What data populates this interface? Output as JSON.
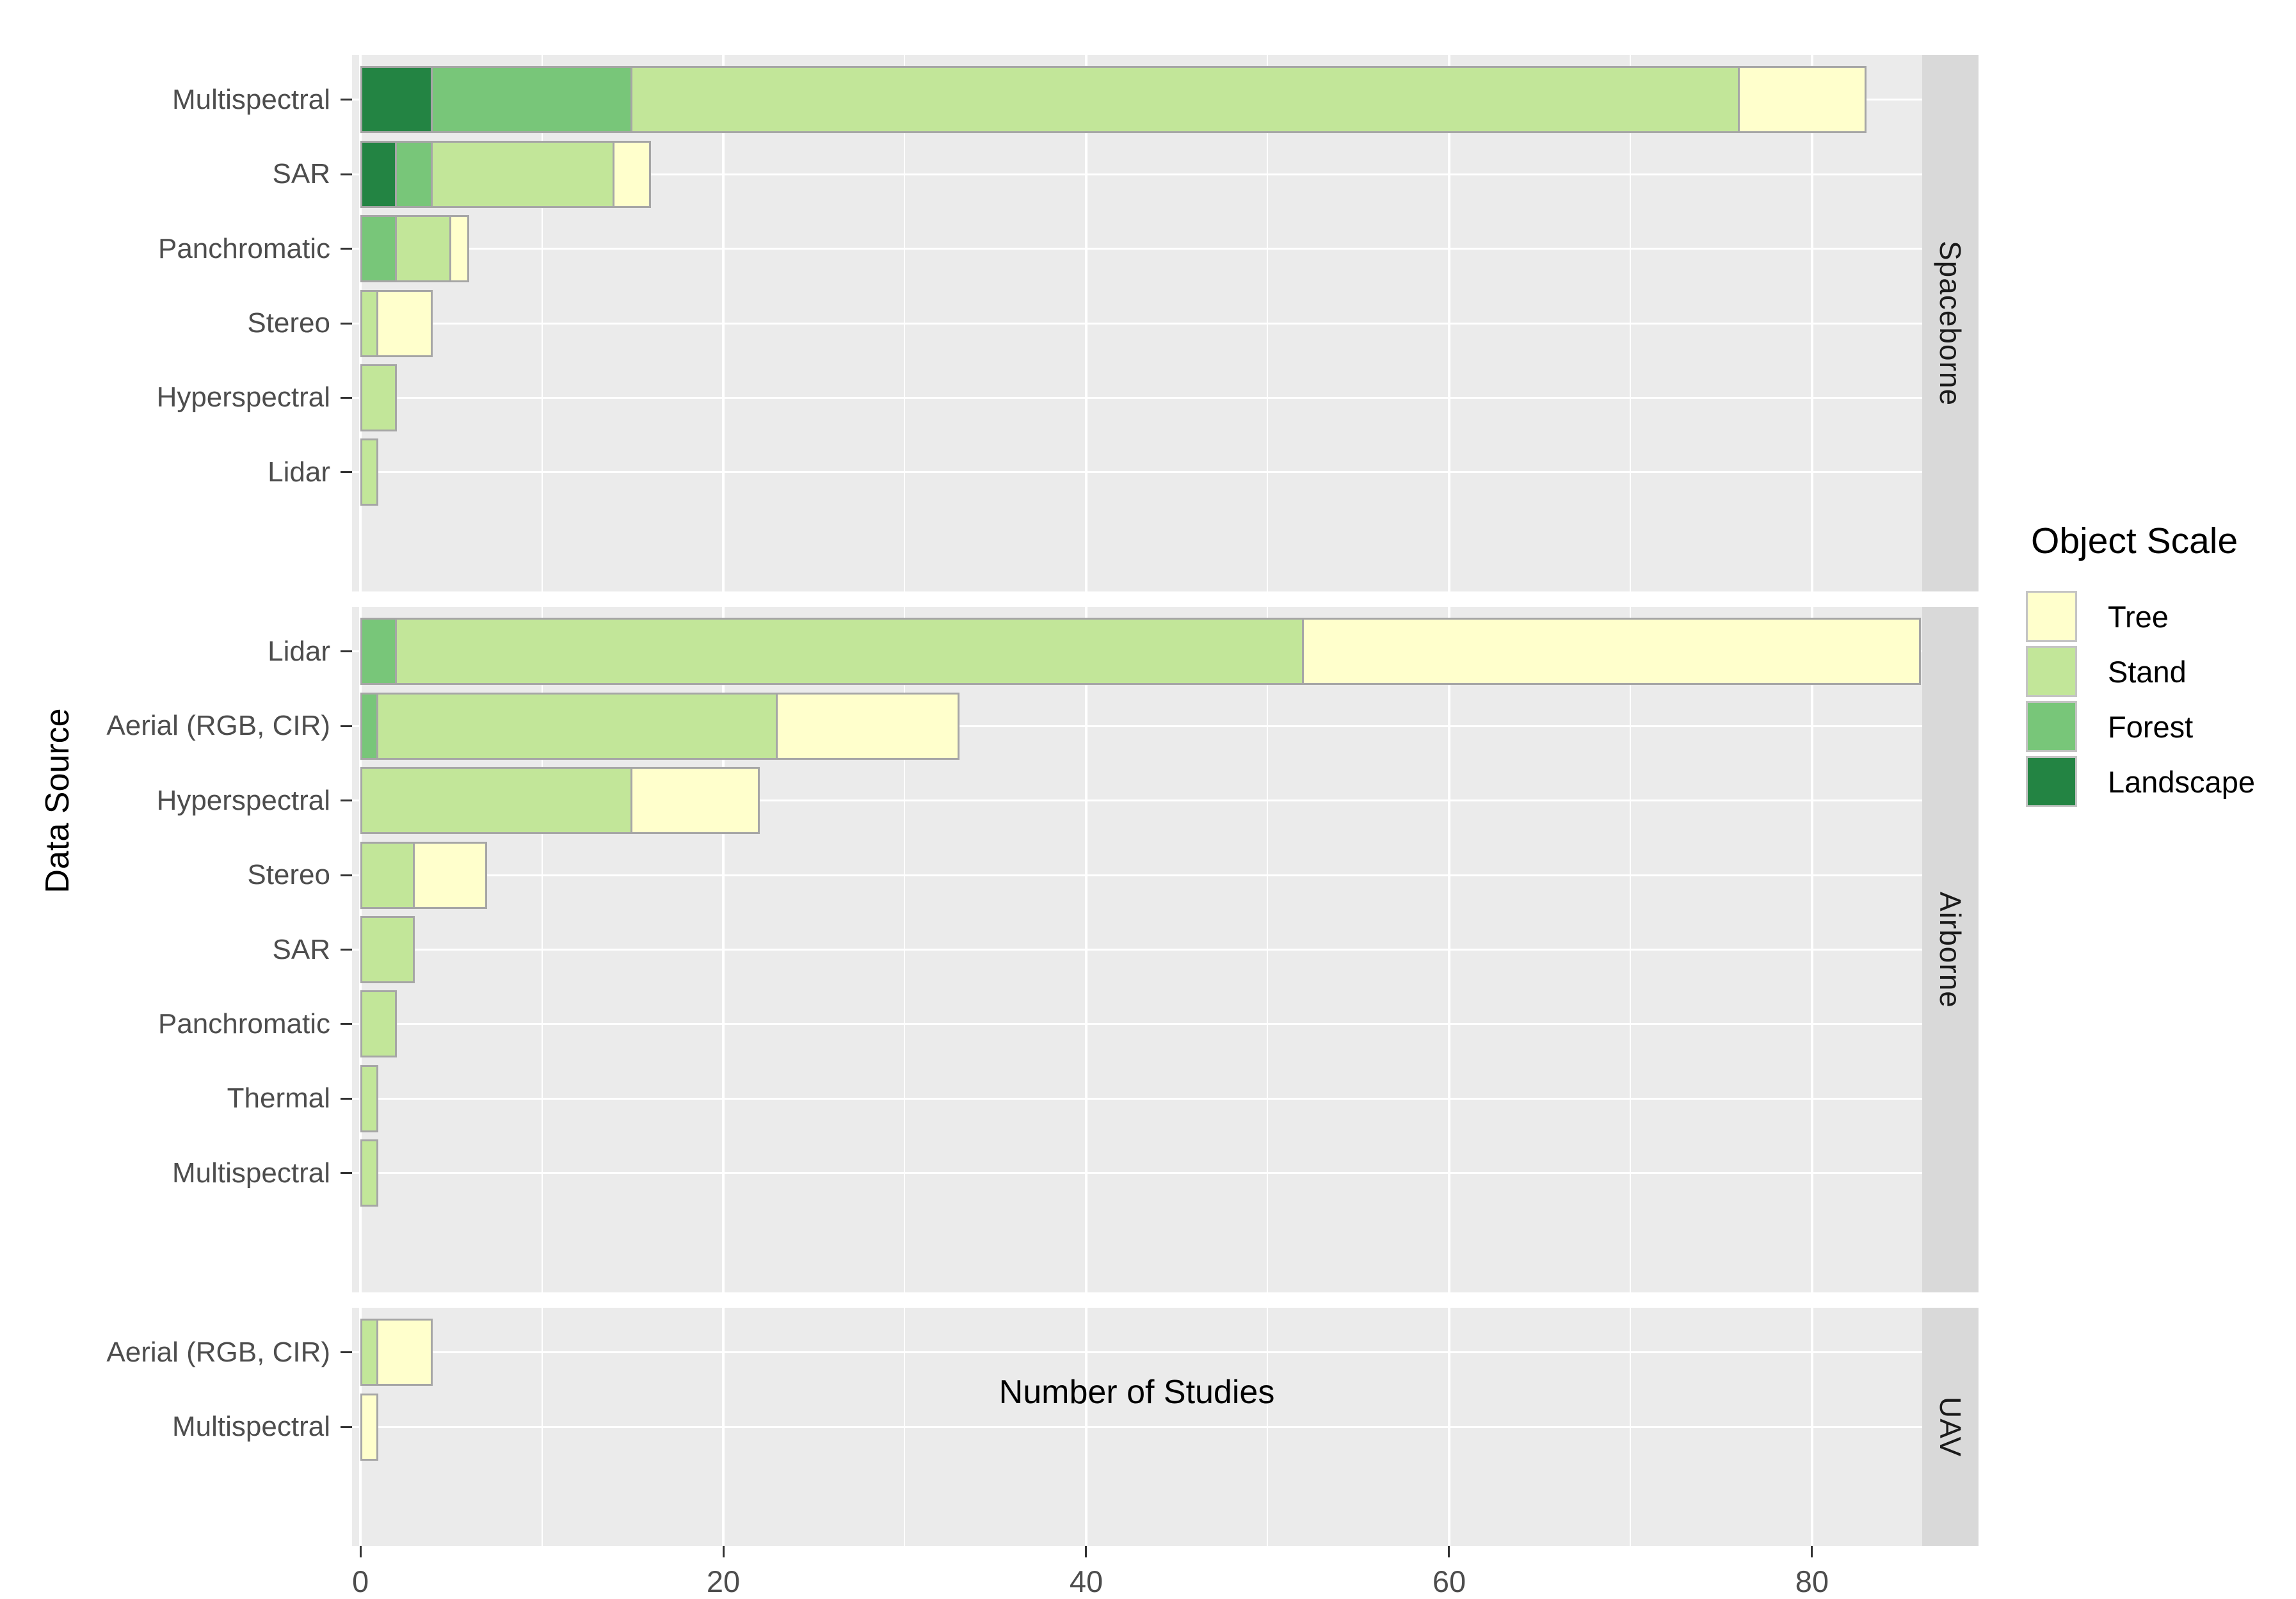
{
  "chart_data": {
    "type": "bar",
    "orientation": "horizontal",
    "stacked": true,
    "xlabel": "Number of Studies",
    "ylabel": "Data Source",
    "xlim": [
      -0.46,
      86.07
    ],
    "x_major_ticks": [
      0,
      20,
      40,
      60,
      80
    ],
    "x_minor_gridlines": [
      10,
      30,
      50,
      70
    ],
    "grid": true,
    "stack_order": [
      "Landscape",
      "Forest",
      "Stand",
      "Tree"
    ],
    "legend": {
      "title": "Object Scale",
      "position": "right",
      "entries": [
        {
          "label": "Tree",
          "color": "#FFFFCC"
        },
        {
          "label": "Stand",
          "color": "#C2E699"
        },
        {
          "label": "Forest",
          "color": "#78C679"
        },
        {
          "label": "Landscape",
          "color": "#238443"
        }
      ]
    },
    "facets": [
      {
        "label": "Spaceborne",
        "rows": [
          {
            "category": "Multispectral",
            "values": {
              "Landscape": 4,
              "Forest": 11,
              "Stand": 61,
              "Tree": 7
            }
          },
          {
            "category": "SAR",
            "values": {
              "Landscape": 2,
              "Forest": 2,
              "Stand": 10,
              "Tree": 2
            }
          },
          {
            "category": "Panchromatic",
            "values": {
              "Forest": 2,
              "Stand": 3,
              "Tree": 1
            }
          },
          {
            "category": "Stereo",
            "values": {
              "Stand": 1,
              "Tree": 3
            }
          },
          {
            "category": "Hyperspectral",
            "values": {
              "Stand": 2
            }
          },
          {
            "category": "Lidar",
            "values": {
              "Stand": 1
            }
          }
        ]
      },
      {
        "label": "Airborne",
        "rows": [
          {
            "category": "Lidar",
            "values": {
              "Forest": 2,
              "Stand": 50,
              "Tree": 34
            }
          },
          {
            "category": "Aerial (RGB, CIR)",
            "values": {
              "Forest": 1,
              "Stand": 22,
              "Tree": 10
            }
          },
          {
            "category": "Hyperspectral",
            "values": {
              "Stand": 15,
              "Tree": 7
            }
          },
          {
            "category": "Stereo",
            "values": {
              "Stand": 3,
              "Tree": 4
            }
          },
          {
            "category": "SAR",
            "values": {
              "Stand": 3
            }
          },
          {
            "category": "Panchromatic",
            "values": {
              "Stand": 2
            }
          },
          {
            "category": "Thermal",
            "values": {
              "Stand": 1
            }
          },
          {
            "category": "Multispectral",
            "values": {
              "Stand": 1
            }
          }
        ]
      },
      {
        "label": "UAV",
        "rows": [
          {
            "category": "Aerial (RGB, CIR)",
            "values": {
              "Stand": 1,
              "Tree": 3
            }
          },
          {
            "category": "Multispectral",
            "values": {
              "Tree": 1
            }
          }
        ]
      }
    ],
    "style_colors": {
      "panel_background": "#EBEBEB",
      "strip_background": "#D9D9D9",
      "gridline": "#FFFFFF",
      "bar_border": "#A6A6A6"
    }
  }
}
